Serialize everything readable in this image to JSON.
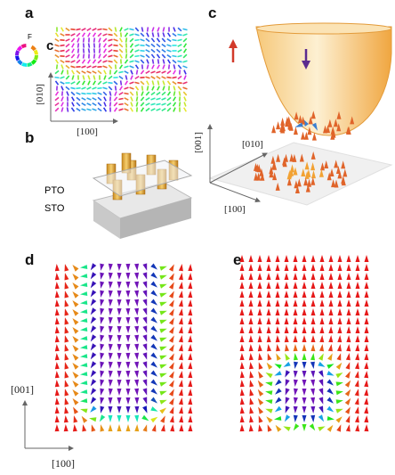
{
  "panel_a": {
    "label": "a",
    "inset_label": "c",
    "wheel_label": "F",
    "axis_vertical": "[010]",
    "axis_horizontal": "[100]"
  },
  "panel_b": {
    "label": "b",
    "top_layer": "PTO",
    "bottom_layer": "STO"
  },
  "panel_c": {
    "label": "c",
    "axis_vertical": "[001]",
    "axis_second": "[010]",
    "axis_third": "[100]"
  },
  "panel_d": {
    "label": "d",
    "axis_vertical": "[001]",
    "axis_horizontal": "[100]"
  },
  "panel_e": {
    "label": "e"
  }
}
